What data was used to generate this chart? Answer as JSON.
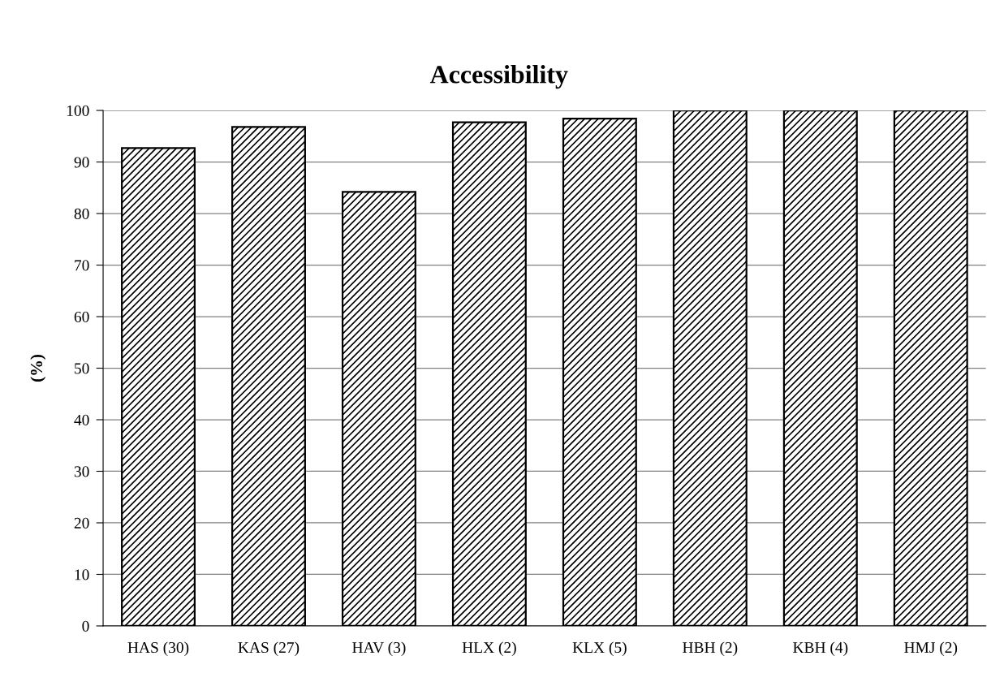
{
  "chart_data": {
    "type": "bar",
    "title": "Accessibility",
    "ylabel": "(%)",
    "categories": [
      "HAS (30)",
      "KAS (27)",
      "HAV (3)",
      "HLX (2)",
      "KLX (5)",
      "HBH (2)",
      "KBH (4)",
      "HMJ (2)"
    ],
    "values": [
      92.7,
      96.8,
      84.2,
      97.7,
      98.4,
      100,
      100,
      100
    ],
    "color": "#000000",
    "ylim": [
      0,
      100
    ],
    "yticks": [
      0,
      10,
      20,
      30,
      40,
      50,
      60,
      70,
      80,
      90,
      100
    ],
    "grid": "y",
    "legend": false
  }
}
